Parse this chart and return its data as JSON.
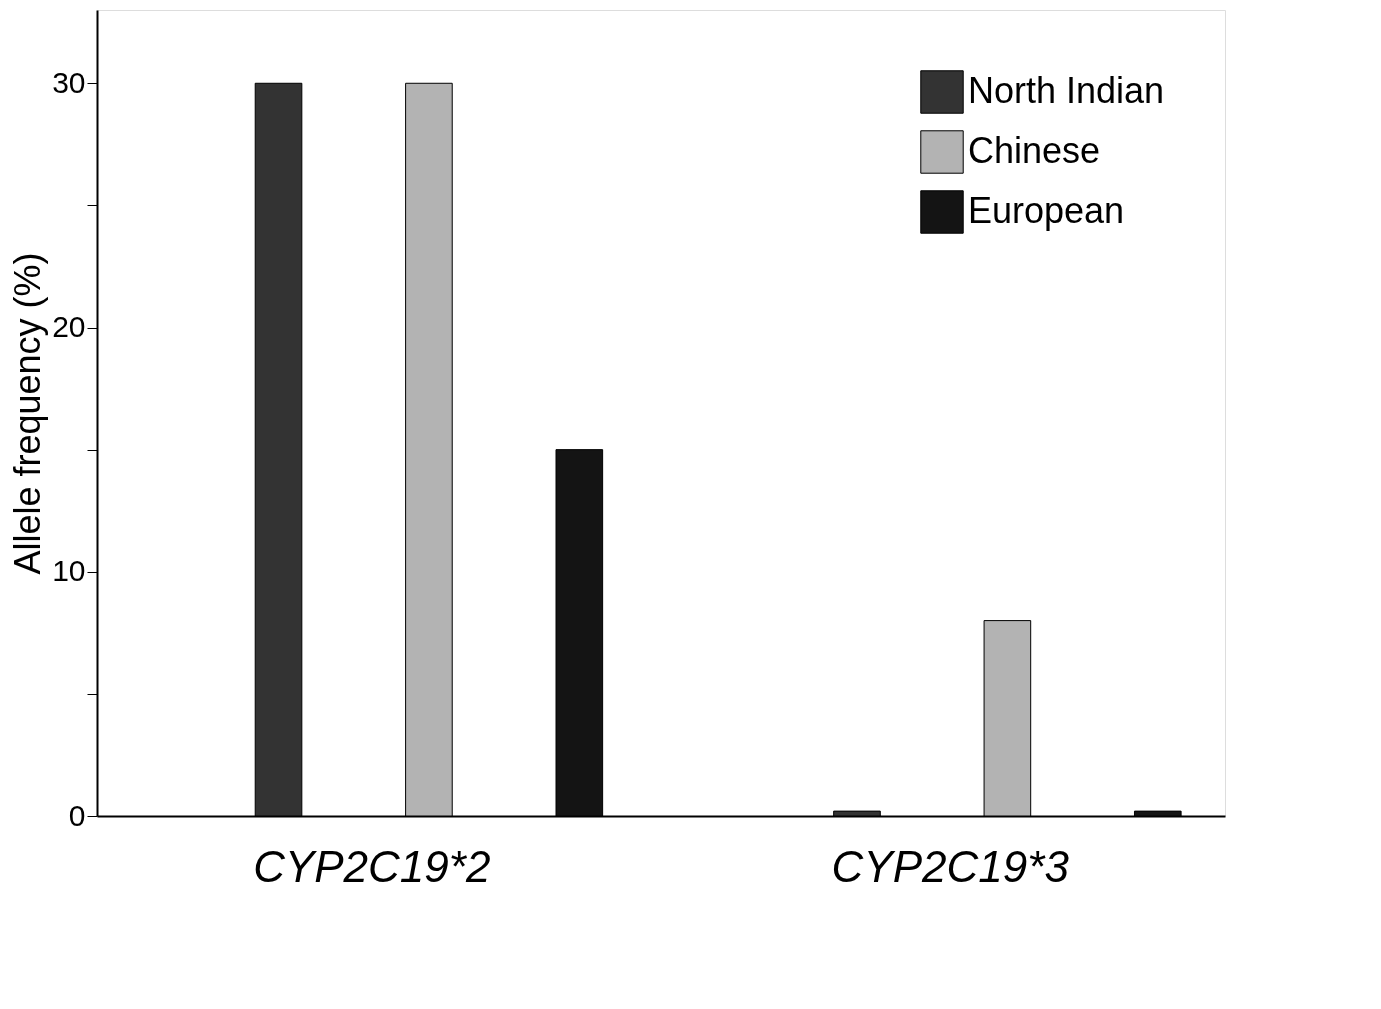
{
  "chart_data": {
    "type": "bar",
    "ylabel": "Allele frequency (%)",
    "categories": [
      "CYP2C19*2",
      "CYP2C19*3"
    ],
    "series": [
      {
        "name": "North Indian",
        "color": "#333333",
        "values": [
          30,
          0.2
        ]
      },
      {
        "name": "Chinese",
        "color": "#b3b3b3",
        "values": [
          30,
          8
        ]
      },
      {
        "name": "European",
        "color": "#141414",
        "values": [
          15,
          0.2
        ]
      }
    ],
    "ylim": [
      0,
      33
    ],
    "yticks": [
      0,
      {
        "value": 5,
        "label": null
      },
      10,
      {
        "value": 15,
        "label": null
      },
      20,
      {
        "value": 25,
        "label": null
      },
      30
    ],
    "grid": false,
    "legend": "top right"
  }
}
